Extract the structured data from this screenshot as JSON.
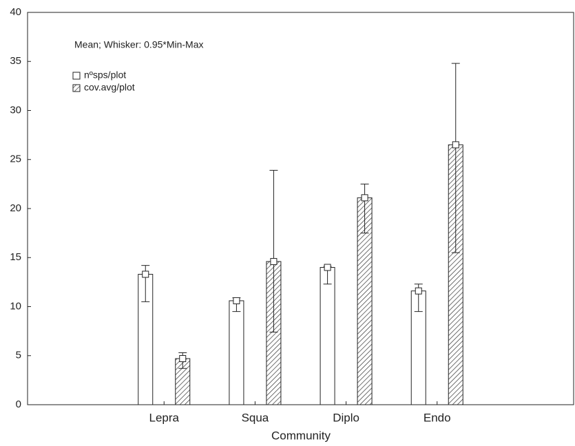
{
  "chart_data": {
    "type": "bar",
    "annotation": "Mean; Whisker: 0.95*Min-Max",
    "x_label": "Community",
    "categories": [
      "Lepra",
      "Squa",
      "Diplo",
      "Endo"
    ],
    "series": [
      {
        "name": "nºsps/plot",
        "color": "#ffffff",
        "pattern": "none",
        "values": [
          13.3,
          10.6,
          14.0,
          11.6
        ],
        "min": [
          10.5,
          9.5,
          12.3,
          9.5
        ],
        "max": [
          14.2,
          10.9,
          14.1,
          12.3
        ]
      },
      {
        "name": "cov.avg/plot",
        "color": "#ffffff",
        "pattern": "diagonal",
        "values": [
          4.7,
          14.6,
          21.1,
          26.5
        ],
        "min": [
          3.7,
          7.4,
          17.5,
          15.5
        ],
        "max": [
          5.3,
          23.9,
          22.5,
          34.8
        ]
      }
    ],
    "ylim": [
      0,
      40
    ],
    "yticks": [
      0,
      5,
      10,
      15,
      20,
      25,
      30,
      35,
      40
    ],
    "grid": false
  }
}
